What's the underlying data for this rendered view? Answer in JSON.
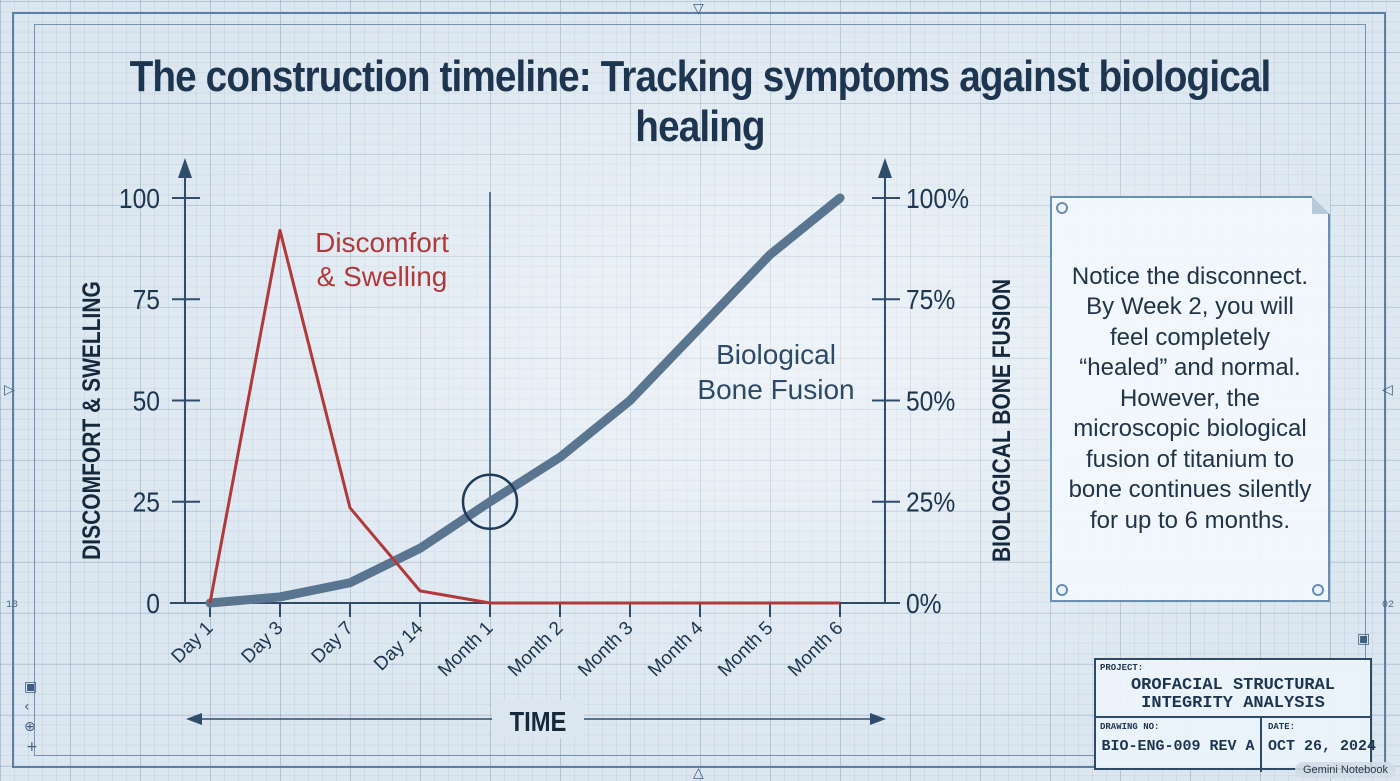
{
  "title": "The construction timeline: Tracking symptoms against biological healing",
  "chart_data": {
    "type": "line",
    "categories": [
      "Day 1",
      "Day 3",
      "Day 7",
      "Day 14",
      "Month 1",
      "Month 2",
      "Month 3",
      "Month 4",
      "Month 5",
      "Month 6"
    ],
    "x_label": "TIME",
    "y_left_label": "DISCOMFORT & SWELLING",
    "y_right_label": "BIOLOGICAL BONE FUSION",
    "y_left_ticks": [
      "0",
      "25",
      "50",
      "75",
      "100"
    ],
    "y_right_ticks": [
      "0%",
      "25%",
      "50%",
      "75%",
      "100%"
    ],
    "ylim": [
      0,
      100
    ],
    "series": [
      {
        "name": "Discomfort & Swelling",
        "label_lines": [
          "Discomfort",
          "& Swelling"
        ],
        "axis": "left",
        "color": "#b03a3a",
        "values": [
          0,
          92,
          23.5,
          3,
          0,
          0,
          0,
          0,
          0,
          0
        ]
      },
      {
        "name": "Biological Bone Fusion",
        "label_lines": [
          "Biological",
          "Bone Fusion"
        ],
        "axis": "right",
        "color": "#5a7590",
        "values": [
          0,
          1.5,
          5,
          13.5,
          25,
          36,
          50,
          68,
          86,
          100
        ]
      }
    ],
    "annotations": [
      {
        "type": "vertical-line",
        "at_category": "Month 1"
      },
      {
        "type": "circle",
        "at_category": "Month 1",
        "value": 25
      }
    ]
  },
  "note": {
    "text": "Notice the disconnect. By Week 2, you will feel completely “healed” and normal. However, the microscopic biological fusion of titanium to bone continues silently for up to 6 months."
  },
  "title_block": {
    "project_label": "PROJECT:",
    "project_value_line1": "OROFACIAL STRUCTURAL",
    "project_value_line2": "INTEGRITY ANALYSIS",
    "drawing_label": "DRAWING NO:",
    "drawing_value": "BIO-ENG-009 REV A",
    "date_label": "DATE:",
    "date_value": "OCT 26, 2024"
  },
  "margin_numbers": {
    "left": "13",
    "right": "02"
  },
  "watermark": "Gemini Notebook",
  "colors": {
    "title": "#1e3550",
    "axis": "#2f4d6b",
    "discomfort": "#b03a3a",
    "fusion": "#5a7590"
  }
}
